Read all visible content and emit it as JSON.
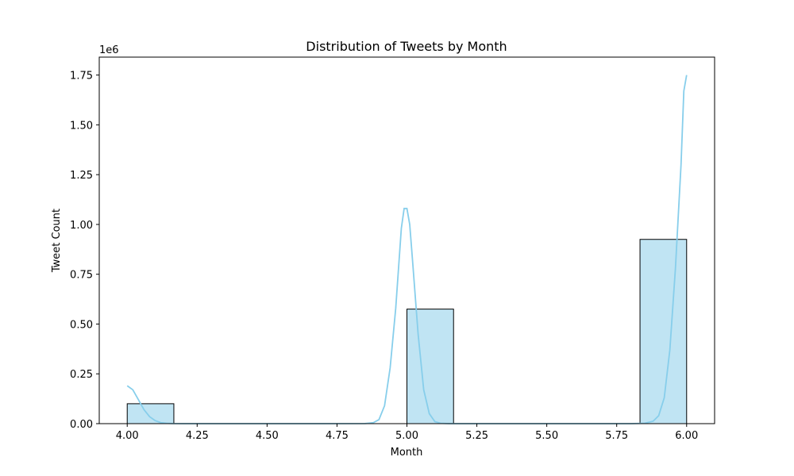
{
  "chart_data": {
    "type": "bar",
    "title": "Distribution of Tweets by Month",
    "xlabel": "Month",
    "ylabel": "Tweet Count",
    "y_offset_label": "1e6",
    "xlim": [
      3.9,
      6.1
    ],
    "ylim": [
      0,
      1.84
    ],
    "x_ticks": [
      4.0,
      4.25,
      4.5,
      4.75,
      5.0,
      5.25,
      5.5,
      5.75,
      6.0
    ],
    "x_tick_labels": [
      "4.00",
      "4.25",
      "4.50",
      "4.75",
      "5.00",
      "5.25",
      "5.50",
      "5.75",
      "6.00"
    ],
    "y_ticks": [
      0,
      0.25,
      0.5,
      0.75,
      1.0,
      1.25,
      1.5,
      1.75
    ],
    "y_tick_labels": [
      "0.00",
      "0.25",
      "0.50",
      "0.75",
      "1.00",
      "1.25",
      "1.50",
      "1.75"
    ],
    "bins": [
      {
        "x0": 4.0,
        "x1": 4.1667,
        "value": 0.1
      },
      {
        "x0": 4.1667,
        "x1": 4.3333,
        "value": 0
      },
      {
        "x0": 4.3333,
        "x1": 4.5,
        "value": 0
      },
      {
        "x0": 4.5,
        "x1": 4.6667,
        "value": 0
      },
      {
        "x0": 4.6667,
        "x1": 4.8333,
        "value": 0
      },
      {
        "x0": 4.8333,
        "x1": 5.0,
        "value": 0
      },
      {
        "x0": 5.0,
        "x1": 5.1667,
        "value": 0.575
      },
      {
        "x0": 5.1667,
        "x1": 5.3333,
        "value": 0
      },
      {
        "x0": 5.3333,
        "x1": 5.5,
        "value": 0
      },
      {
        "x0": 5.5,
        "x1": 5.6667,
        "value": 0
      },
      {
        "x0": 5.6667,
        "x1": 5.8333,
        "value": 0
      },
      {
        "x0": 5.8333,
        "x1": 6.0,
        "value": 0.925
      }
    ],
    "kde": {
      "x": [
        4.0,
        4.02,
        4.04,
        4.06,
        4.08,
        4.1,
        4.12,
        4.14,
        4.16,
        4.2,
        4.3,
        4.5,
        4.7,
        4.85,
        4.88,
        4.9,
        4.92,
        4.94,
        4.96,
        4.98,
        4.99,
        5.0,
        5.01,
        5.02,
        5.04,
        5.06,
        5.08,
        5.1,
        5.12,
        5.15,
        5.2,
        5.4,
        5.6,
        5.8,
        5.85,
        5.88,
        5.9,
        5.92,
        5.94,
        5.96,
        5.98,
        5.99,
        6.0
      ],
      "y": [
        0.19,
        0.17,
        0.12,
        0.07,
        0.035,
        0.015,
        0.005,
        0.002,
        0.0005,
        0,
        0,
        0,
        0,
        0.0005,
        0.005,
        0.02,
        0.09,
        0.28,
        0.58,
        0.98,
        1.08,
        1.08,
        1.0,
        0.82,
        0.45,
        0.17,
        0.05,
        0.01,
        0.002,
        0,
        0,
        0,
        0,
        0,
        0.002,
        0.012,
        0.04,
        0.13,
        0.37,
        0.78,
        1.3,
        1.67,
        1.75
      ]
    },
    "colors": {
      "bar_fill": "#c0e4f3",
      "bar_edge": "#000000",
      "kde_line": "#87ceeb"
    },
    "grid": false,
    "legend": "none"
  }
}
